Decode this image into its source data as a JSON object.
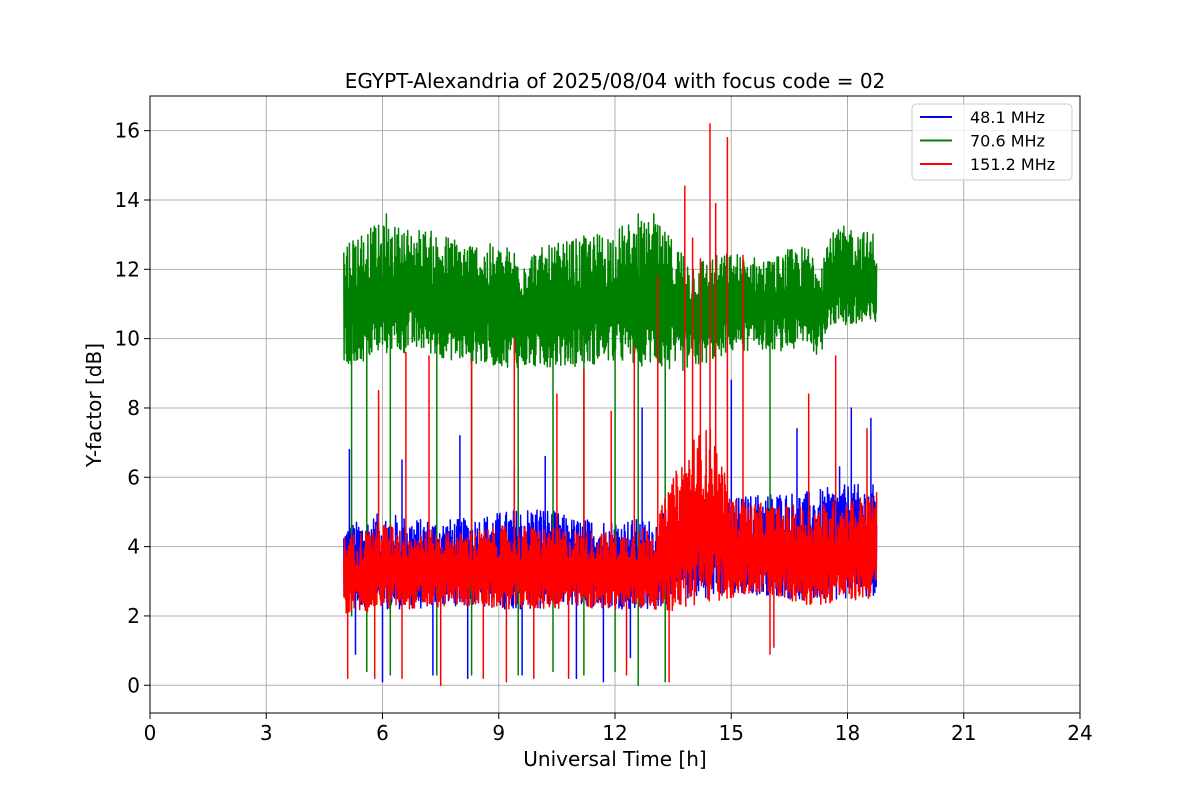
{
  "chart_data": {
    "type": "line",
    "title": "EGYPT-Alexandria of 2025/08/04 with focus code = 02",
    "xlabel": "Universal Time [h]",
    "ylabel": "Y-factor [dB]",
    "xlim": [
      0,
      24
    ],
    "ylim": [
      -0.8,
      17
    ],
    "xticks": [
      0,
      3,
      6,
      9,
      12,
      15,
      18,
      21,
      24
    ],
    "yticks": [
      0,
      2,
      4,
      6,
      8,
      10,
      12,
      14,
      16
    ],
    "grid": true,
    "legend_position": "top-right",
    "data_time_range_h": [
      5.0,
      18.75
    ],
    "series": [
      {
        "name": "48.1 MHz",
        "color": "#0000ff",
        "envelope": {
          "x": [
            5.0,
            6.0,
            7.0,
            8.0,
            9.0,
            10.0,
            11.0,
            12.0,
            13.0,
            14.0,
            15.0,
            16.0,
            17.0,
            18.0,
            18.75
          ],
          "low": [
            2.3,
            2.2,
            2.2,
            2.3,
            2.2,
            2.2,
            2.3,
            2.2,
            2.2,
            2.5,
            2.6,
            2.6,
            2.4,
            2.5,
            2.6
          ],
          "high": [
            4.6,
            5.0,
            4.8,
            4.8,
            5.0,
            5.2,
            4.8,
            4.8,
            4.8,
            5.5,
            5.4,
            5.6,
            5.6,
            5.8,
            5.8
          ]
        },
        "peaks": [
          [
            5.15,
            6.8
          ],
          [
            6.5,
            6.5
          ],
          [
            8.0,
            7.2
          ],
          [
            9.4,
            6.3
          ],
          [
            10.2,
            6.6
          ],
          [
            12.7,
            8.0
          ],
          [
            15.0,
            8.8
          ],
          [
            16.7,
            7.4
          ],
          [
            17.8,
            6.3
          ],
          [
            18.1,
            8.0
          ],
          [
            18.6,
            7.7
          ]
        ],
        "dips": [
          [
            5.3,
            0.9
          ],
          [
            6.0,
            0.1
          ],
          [
            7.3,
            0.3
          ],
          [
            8.2,
            0.2
          ],
          [
            9.6,
            0.3
          ],
          [
            11.0,
            0.2
          ],
          [
            11.7,
            0.1
          ],
          [
            12.4,
            0.8
          ]
        ]
      },
      {
        "name": "70.6 MHz",
        "color": "#008000",
        "envelope": {
          "x": [
            5.0,
            5.5,
            6.0,
            7.0,
            8.0,
            9.0,
            10.0,
            11.0,
            12.0,
            12.5,
            13.0,
            13.5,
            14.0,
            15.0,
            16.0,
            16.5,
            17.0,
            17.3,
            17.5,
            18.0,
            18.5,
            18.75
          ],
          "low": [
            9.0,
            9.3,
            9.5,
            9.6,
            9.3,
            9.2,
            9.1,
            9.2,
            9.3,
            9.2,
            9.2,
            9.0,
            9.1,
            9.6,
            9.7,
            9.6,
            9.8,
            9.4,
            10.4,
            10.3,
            10.2,
            10.3
          ],
          "high": [
            12.9,
            13.2,
            13.3,
            13.2,
            12.9,
            12.7,
            12.6,
            12.9,
            13.2,
            13.4,
            13.4,
            12.9,
            12.3,
            12.5,
            12.3,
            12.6,
            12.7,
            12.4,
            13.0,
            13.3,
            13.1,
            13.1
          ]
        },
        "peaks": [
          [
            6.1,
            13.6
          ],
          [
            12.6,
            13.6
          ],
          [
            13.0,
            13.6
          ]
        ],
        "dips": [
          [
            5.2,
            2.0
          ],
          [
            5.6,
            0.4
          ],
          [
            6.2,
            0.3
          ],
          [
            7.4,
            0.3
          ],
          [
            8.3,
            0.3
          ],
          [
            9.5,
            0.3
          ],
          [
            10.4,
            0.4
          ],
          [
            11.2,
            0.3
          ],
          [
            12.0,
            0.4
          ],
          [
            12.6,
            0.0
          ],
          [
            13.3,
            0.1
          ],
          [
            16.0,
            4.5
          ]
        ]
      },
      {
        "name": "151.2 MHz",
        "color": "#ff0000",
        "envelope": {
          "x": [
            5.0,
            6.0,
            7.0,
            8.0,
            9.0,
            10.0,
            11.0,
            12.0,
            13.0,
            13.5,
            14.0,
            14.5,
            15.0,
            16.0,
            17.0,
            18.0,
            18.75
          ],
          "low": [
            2.0,
            2.2,
            2.2,
            2.3,
            2.2,
            2.2,
            2.2,
            2.2,
            2.2,
            2.1,
            2.2,
            2.4,
            2.5,
            2.6,
            2.3,
            2.4,
            2.5
          ],
          "high": [
            4.3,
            4.7,
            4.5,
            4.4,
            4.6,
            4.6,
            4.5,
            4.4,
            4.6,
            6.0,
            7.2,
            7.5,
            5.4,
            5.2,
            5.2,
            5.4,
            5.6
          ]
        },
        "peaks": [
          [
            5.9,
            8.5
          ],
          [
            6.6,
            9.6
          ],
          [
            7.2,
            9.5
          ],
          [
            8.3,
            9.4
          ],
          [
            9.4,
            10.0
          ],
          [
            10.5,
            8.4
          ],
          [
            11.2,
            9.1
          ],
          [
            11.9,
            7.9
          ],
          [
            12.5,
            9.8
          ],
          [
            13.1,
            11.8
          ],
          [
            13.8,
            14.4
          ],
          [
            14.0,
            12.9
          ],
          [
            14.2,
            12.3
          ],
          [
            14.45,
            16.2
          ],
          [
            14.6,
            13.9
          ],
          [
            14.9,
            15.8
          ],
          [
            15.3,
            12.4
          ],
          [
            17.0,
            8.4
          ],
          [
            17.7,
            9.5
          ],
          [
            18.5,
            7.4
          ]
        ],
        "dips": [
          [
            5.1,
            0.2
          ],
          [
            5.8,
            0.2
          ],
          [
            6.5,
            0.2
          ],
          [
            7.5,
            0.0
          ],
          [
            8.6,
            0.2
          ],
          [
            9.2,
            0.1
          ],
          [
            9.9,
            0.2
          ],
          [
            10.8,
            0.2
          ],
          [
            12.3,
            0.3
          ],
          [
            13.4,
            0.1
          ],
          [
            16.0,
            0.9
          ],
          [
            16.1,
            1.1
          ]
        ]
      }
    ]
  }
}
